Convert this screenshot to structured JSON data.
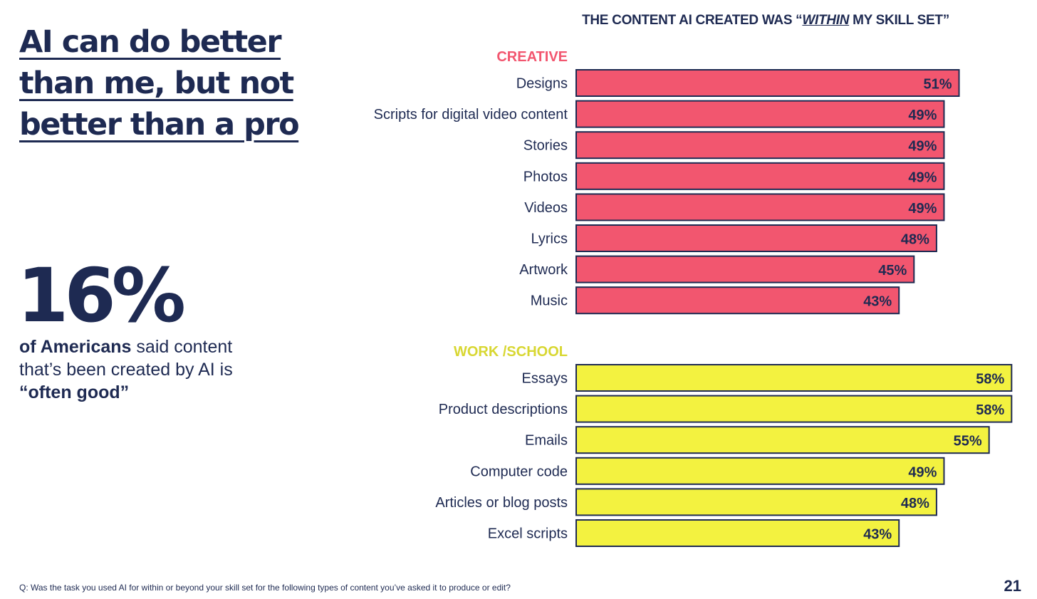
{
  "headline": "AI can do better than me, but not better than a pro",
  "stat": {
    "value": "16%",
    "desc_bold": "of Americans",
    "desc_mid": " said content that’s been created by AI is ",
    "desc_end": "“often good”"
  },
  "chart_title": {
    "pre": "THE CONTENT AI CREATED WAS “",
    "emph": "WITHIN",
    "post": " MY SKILL SET”"
  },
  "chart_data": {
    "type": "bar",
    "orientation": "horizontal",
    "title": "THE CONTENT AI CREATED WAS “WITHIN MY SKILL SET”",
    "unit": "%",
    "groups": [
      {
        "name": "CREATIVE",
        "color": "#f2566f",
        "label_color": "#f2566f",
        "categories": [
          "Designs",
          "Scripts for digital video content",
          "Stories",
          "Photos",
          "Videos",
          "Lyrics",
          "Artwork",
          "Music"
        ],
        "values": [
          51,
          49,
          49,
          49,
          49,
          48,
          45,
          43
        ]
      },
      {
        "name": "WORK /SCHOOL",
        "color": "#f3f240",
        "label_color": "#d8d732",
        "categories": [
          "Essays",
          "Product descriptions",
          "Emails",
          "Computer code",
          "Articles or blog posts",
          "Excel scripts"
        ],
        "values": [
          58,
          58,
          55,
          49,
          48,
          43
        ]
      }
    ]
  },
  "footnote": "Q: Was the task you used AI for within or beyond your skill set for the following types of content you’ve asked it to produce or edit?",
  "page_number": "21",
  "colors": {
    "navy": "#1e2a52",
    "creative": "#f2566f",
    "work": "#f3f240"
  }
}
